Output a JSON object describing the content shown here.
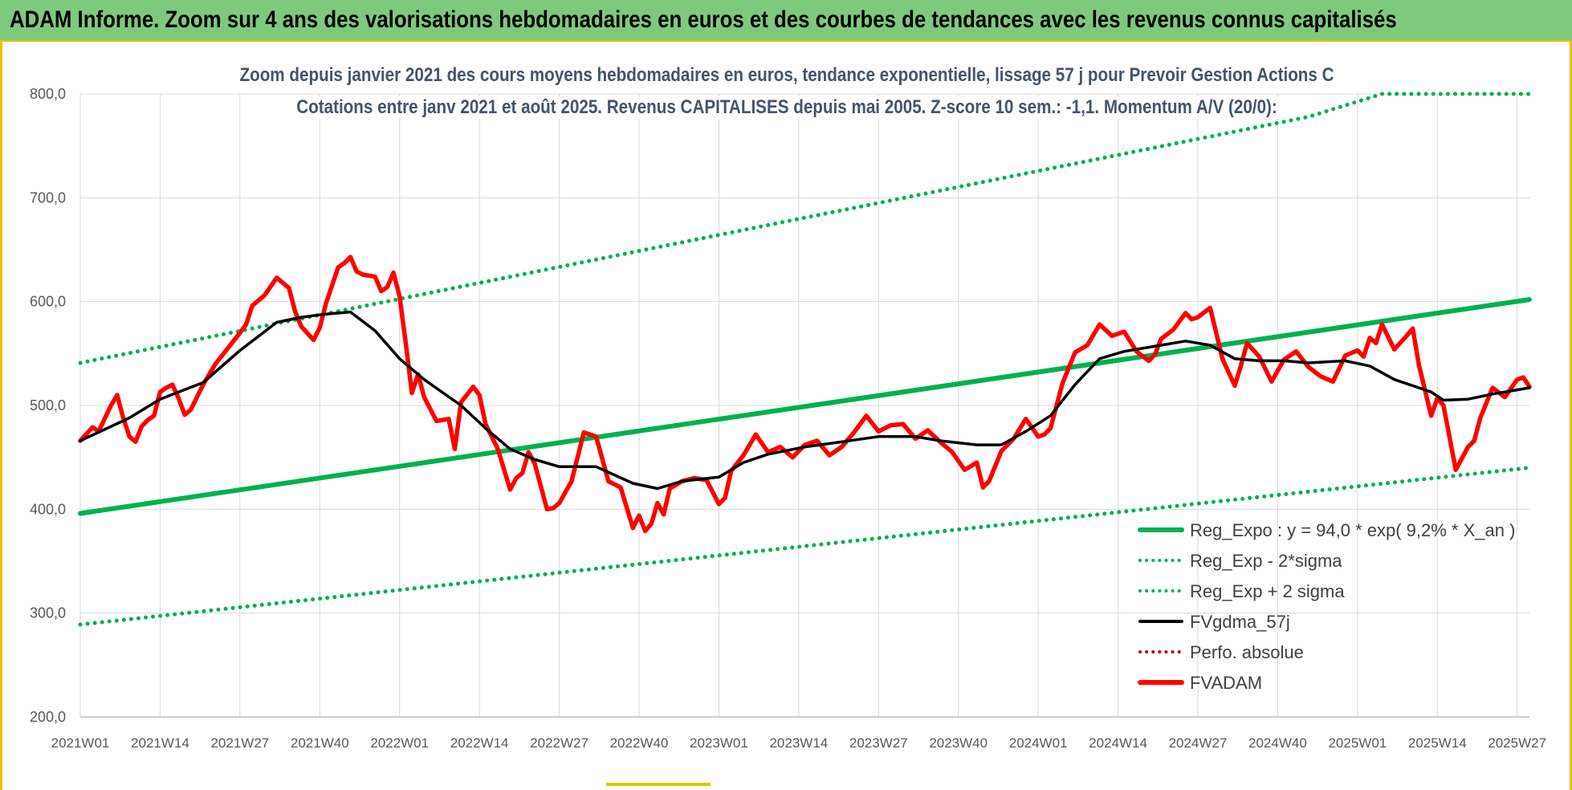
{
  "banner": {
    "title": "ADAM Informe. Zoom sur 4 ans des valorisations hebdomadaires en euros et des courbes de tendances avec les revenus connus capitalisés"
  },
  "colors": {
    "banner_bg": "#7fc97f",
    "trend": "#00b050",
    "price": "#ff0000",
    "smooth": "#000000",
    "grid": "#d9d9d9"
  },
  "chart_data": {
    "type": "line",
    "title_line1": "Zoom depuis janvier 2021 des cours moyens hebdomadaires en euros, tendance exponentielle, lissage 57 j pour Prevoir Gestion Actions C",
    "title_line2": "Cotations entre janv 2021 et août 2025. Revenus CAPITALISES depuis mai 2005. Z-score 10 sem.: -1,1. Momentum A/V (20/0):",
    "ylim": [
      200,
      800
    ],
    "y_ticks": [
      "200,0",
      "300,0",
      "400,0",
      "500,0",
      "600,0",
      "700,0",
      "800,0"
    ],
    "y_tick_values": [
      200,
      300,
      400,
      500,
      600,
      700,
      800
    ],
    "x_range_weeks": [
      0,
      236
    ],
    "x_ticks": [
      "2021W01",
      "2021W14",
      "2021W27",
      "2021W40",
      "2022W01",
      "2022W14",
      "2022W27",
      "2022W40",
      "2023W01",
      "2023W14",
      "2023W27",
      "2023W40",
      "2024W01",
      "2024W14",
      "2024W27",
      "2024W40",
      "2025W01",
      "2025W14",
      "2025W27"
    ],
    "x_tick_weeks": [
      0,
      13,
      26,
      39,
      52,
      65,
      78,
      91,
      104,
      117,
      130,
      143,
      156,
      169,
      182,
      195,
      208,
      221,
      234
    ],
    "legend": [
      {
        "label": "Reg_Expo : y = 94,0 * exp( 9,2% *  X_an )",
        "style": "solid-thick",
        "color": "#00b050"
      },
      {
        "label": "Reg_Exp - 2*sigma",
        "style": "dotted",
        "color": "#00b050"
      },
      {
        "label": "Reg_Exp + 2 sigma",
        "style": "dotted",
        "color": "#00b050"
      },
      {
        "label": "FVgdma_57j",
        "style": "solid",
        "color": "#000000"
      },
      {
        "label": "Perfo. absolue",
        "style": "dotted",
        "color": "#c00000"
      },
      {
        "label": "FVADAM",
        "style": "solid-thick",
        "color": "#ff0000"
      }
    ],
    "series": [
      {
        "name": "Reg_Expo : y = 94,0 * exp( 9,2% *  X_an )",
        "weeks": [
          0,
          236
        ],
        "values": [
          396,
          602
        ]
      },
      {
        "name": "Reg_Exp - 2*sigma",
        "weeks": [
          0,
          236
        ],
        "values": [
          289,
          440
        ]
      },
      {
        "name": "Reg_Exp + 2 sigma",
        "weeks": [
          0,
          200,
          212,
          236
        ],
        "values": [
          541,
          778,
          800,
          800
        ]
      },
      {
        "name": "FVgdma_57j",
        "weeks": [
          0,
          8,
          13,
          20,
          26,
          32,
          36,
          40,
          44,
          48,
          52,
          56,
          62,
          66,
          70,
          74,
          78,
          84,
          90,
          94,
          98,
          104,
          108,
          112,
          118,
          124,
          130,
          136,
          140,
          146,
          150,
          154,
          158,
          162,
          166,
          170,
          176,
          180,
          184,
          188,
          192,
          196,
          200,
          206,
          210,
          214,
          218,
          220,
          222,
          226,
          230,
          234,
          236
        ],
        "values": [
          466,
          488,
          506,
          522,
          553,
          580,
          585,
          588,
          590,
          572,
          545,
          525,
          500,
          478,
          458,
          448,
          441,
          441,
          425,
          420,
          427,
          431,
          445,
          453,
          460,
          465,
          470,
          470,
          466,
          462,
          462,
          475,
          490,
          520,
          545,
          552,
          558,
          562,
          558,
          545,
          543,
          543,
          541,
          543,
          538,
          525,
          517,
          513,
          505,
          506,
          511,
          515,
          517
        ]
      },
      {
        "name": "FVADAM",
        "weeks": [
          0,
          2,
          3,
          5,
          6,
          7,
          8,
          9,
          10,
          11,
          12,
          13,
          14,
          15,
          16,
          17,
          18,
          20,
          22,
          24,
          26,
          27,
          28,
          30,
          32,
          34,
          35,
          36,
          38,
          39,
          40,
          42,
          43,
          44,
          45,
          46,
          48,
          49,
          50,
          51,
          52,
          53,
          54,
          55,
          56,
          58,
          60,
          61,
          62,
          64,
          65,
          66,
          68,
          70,
          71,
          72,
          73,
          74,
          76,
          77,
          78,
          80,
          82,
          84,
          86,
          88,
          90,
          91,
          92,
          93,
          94,
          95,
          96,
          98,
          100,
          102,
          104,
          105,
          106,
          108,
          110,
          112,
          114,
          116,
          118,
          120,
          122,
          124,
          126,
          128,
          130,
          131,
          132,
          134,
          136,
          138,
          140,
          142,
          144,
          146,
          147,
          148,
          150,
          152,
          154,
          156,
          157,
          158,
          160,
          162,
          164,
          166,
          168,
          170,
          172,
          174,
          175,
          176,
          178,
          180,
          181,
          182,
          184,
          186,
          188,
          189,
          190,
          192,
          194,
          196,
          198,
          200,
          202,
          204,
          206,
          208,
          209,
          210,
          211,
          212,
          214,
          216,
          217,
          218,
          220,
          221,
          222,
          224,
          226,
          227,
          228,
          230,
          232,
          234,
          235,
          236
        ],
        "values": [
          466,
          479,
          475,
          500,
          510,
          488,
          470,
          465,
          480,
          486,
          490,
          513,
          517,
          520,
          507,
          491,
          496,
          520,
          540,
          555,
          570,
          578,
          596,
          606,
          623,
          613,
          590,
          576,
          563,
          575,
          598,
          633,
          637,
          643,
          629,
          626,
          624,
          610,
          614,
          628,
          605,
          560,
          512,
          530,
          508,
          485,
          487,
          458,
          503,
          518,
          510,
          482,
          458,
          419,
          430,
          435,
          455,
          444,
          400,
          401,
          406,
          427,
          474,
          470,
          427,
          421,
          382,
          394,
          379,
          386,
          406,
          395,
          420,
          427,
          430,
          428,
          405,
          411,
          437,
          452,
          472,
          455,
          460,
          450,
          462,
          466,
          452,
          460,
          474,
          490,
          475,
          478,
          481,
          482,
          468,
          476,
          465,
          455,
          438,
          445,
          421,
          427,
          456,
          468,
          487,
          470,
          472,
          478,
          522,
          551,
          558,
          578,
          567,
          571,
          552,
          543,
          549,
          564,
          573,
          589,
          583,
          585,
          594,
          545,
          519,
          538,
          560,
          547,
          523,
          544,
          552,
          537,
          528,
          523,
          548,
          553,
          547,
          565,
          560,
          578,
          554,
          567,
          574,
          539,
          490,
          507,
          500,
          438,
          460,
          466,
          488,
          517,
          508,
          525,
          527,
          518
        ]
      }
    ]
  }
}
